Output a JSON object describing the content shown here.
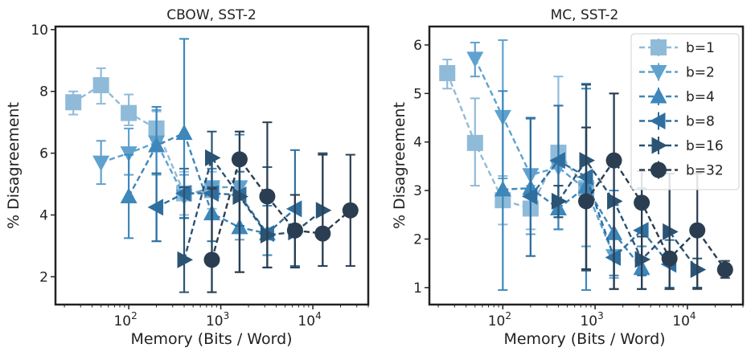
{
  "series_styles": [
    {
      "name": "b=1",
      "color": "#8fbbd9",
      "marker": "square"
    },
    {
      "name": "b=2",
      "color": "#5fa2cf",
      "marker": "triangle-down"
    },
    {
      "name": "b=4",
      "color": "#3d87bb",
      "marker": "triangle-up"
    },
    {
      "name": "b=8",
      "color": "#2f6fa0",
      "marker": "triangle-left"
    },
    {
      "name": "b=16",
      "color": "#2b5373",
      "marker": "triangle-right"
    },
    {
      "name": "b=32",
      "color": "#2b3e51",
      "marker": "circle"
    }
  ],
  "chart_data": [
    {
      "type": "line",
      "title": "CBOW, SST-2",
      "xlabel": "Memory (Bits / Word)",
      "ylabel": "% Disagreement",
      "xscale": "log",
      "xlim": [
        16,
        40000
      ],
      "ylim": [
        1.1,
        10.1
      ],
      "xticks": [
        {
          "value": 100,
          "base": "10",
          "exp": "2"
        },
        {
          "value": 1000,
          "base": "10",
          "exp": "3"
        },
        {
          "value": 10000,
          "base": "10",
          "exp": "4"
        }
      ],
      "yticks": [
        2,
        4,
        6,
        8,
        10
      ],
      "series": [
        {
          "name": "b=1",
          "x": [
            25,
            50,
            100,
            200,
            400,
            800
          ],
          "y": [
            7.65,
            8.2,
            7.3,
            6.8,
            4.7,
            4.8
          ],
          "err_lo": [
            7.25,
            7.6,
            6.9,
            6.3,
            4.0,
            4.2
          ],
          "err_hi": [
            8.0,
            8.75,
            7.9,
            7.35,
            5.4,
            5.4
          ]
        },
        {
          "name": "b=2",
          "x": [
            50,
            100,
            200,
            400,
            800,
            1600
          ],
          "y": [
            5.7,
            6.0,
            6.35,
            4.6,
            4.9,
            4.9
          ],
          "err_lo": [
            5.0,
            5.3,
            5.3,
            3.9,
            4.0,
            3.2
          ],
          "err_hi": [
            6.4,
            6.8,
            7.4,
            5.3,
            5.8,
            6.7
          ]
        },
        {
          "name": "b=4",
          "x": [
            100,
            200,
            400,
            800,
            1600,
            3200
          ],
          "y": [
            4.6,
            6.25,
            6.65,
            4.05,
            3.6,
            3.4
          ],
          "err_lo": [
            3.25,
            3.15,
            3.9,
            1.5,
            2.15,
            2.7
          ],
          "err_hi": [
            5.95,
            7.5,
            9.7,
            5.5,
            6.6,
            4.3
          ]
        },
        {
          "name": "b=8",
          "x": [
            200,
            400,
            800,
            1600,
            3200,
            6400
          ],
          "y": [
            4.25,
            4.7,
            4.7,
            4.65,
            3.4,
            4.2
          ],
          "err_lo": [
            3.15,
            3.9,
            3.15,
            3.65,
            2.3,
            2.35
          ],
          "err_hi": [
            5.35,
            5.5,
            5.9,
            5.4,
            4.5,
            6.1
          ]
        },
        {
          "name": "b=16",
          "x": [
            400,
            800,
            1600,
            3200,
            6400,
            12800
          ],
          "y": [
            2.55,
            5.85,
            4.6,
            3.35,
            3.45,
            4.15
          ],
          "err_lo": [
            1.5,
            4.9,
            2.15,
            2.3,
            2.3,
            2.35
          ],
          "err_hi": [
            4.9,
            6.7,
            5.8,
            5.55,
            4.65,
            6.0
          ]
        },
        {
          "name": "b=32",
          "x": [
            800,
            1600,
            3200,
            6400,
            12800,
            25600
          ],
          "y": [
            2.55,
            5.8,
            4.6,
            3.5,
            3.4,
            4.15
          ],
          "err_lo": [
            1.5,
            2.15,
            2.3,
            2.3,
            2.35,
            2.35
          ],
          "err_hi": [
            4.85,
            6.7,
            7.0,
            4.65,
            5.95,
            5.95
          ]
        }
      ]
    },
    {
      "type": "line",
      "title": "MC, SST-2",
      "xlabel": "Memory (Bits / Word)",
      "ylabel": "% Disagreement",
      "xscale": "log",
      "xlim": [
        16,
        40000
      ],
      "ylim": [
        0.65,
        6.38
      ],
      "xticks": [
        {
          "value": 100,
          "base": "10",
          "exp": "2"
        },
        {
          "value": 1000,
          "base": "10",
          "exp": "3"
        },
        {
          "value": 10000,
          "base": "10",
          "exp": "4"
        }
      ],
      "yticks": [
        1,
        2,
        3,
        4,
        5,
        6
      ],
      "legend": "top-right",
      "series": [
        {
          "name": "b=1",
          "x": [
            25,
            50,
            100,
            200,
            400,
            800
          ],
          "y": [
            5.42,
            3.98,
            2.8,
            2.63,
            3.78,
            3.05
          ],
          "err_lo": [
            5.1,
            3.1,
            2.3,
            2.2,
            2.2,
            1.85
          ],
          "err_hi": [
            5.7,
            4.9,
            3.3,
            3.1,
            5.35,
            4.3
          ]
        },
        {
          "name": "b=2",
          "x": [
            50,
            100,
            200,
            400,
            800,
            1600
          ],
          "y": [
            5.72,
            4.52,
            3.32,
            3.48,
            3.02,
            1.65
          ],
          "err_lo": [
            5.35,
            3.25,
            2.1,
            2.2,
            1.85,
            1.2
          ],
          "err_hi": [
            6.05,
            6.1,
            4.5,
            4.75,
            4.3,
            2.1
          ]
        },
        {
          "name": "b=4",
          "x": [
            100,
            200,
            400,
            800,
            1600,
            3200
          ],
          "y": [
            3.02,
            3.05,
            2.63,
            3.08,
            2.12,
            1.4
          ],
          "err_lo": [
            0.95,
            1.65,
            2.2,
            0.95,
            1.25,
            0.97
          ],
          "err_hi": [
            5.05,
            4.48,
            3.1,
            5.1,
            3.0,
            1.85
          ]
        },
        {
          "name": "b=8",
          "x": [
            200,
            400,
            800,
            1600,
            3200,
            6400
          ],
          "y": [
            2.88,
            3.62,
            3.28,
            1.62,
            2.18,
            1.48
          ],
          "err_lo": [
            1.65,
            2.45,
            1.38,
            0.97,
            1.25,
            1.0
          ],
          "err_hi": [
            4.5,
            4.75,
            5.2,
            2.7,
            3.05,
            1.98
          ]
        },
        {
          "name": "b=16",
          "x": [
            400,
            800,
            1600,
            3200,
            6400,
            12800
          ],
          "y": [
            2.78,
            3.62,
            2.78,
            1.58,
            2.15,
            1.37
          ],
          "err_lo": [
            2.45,
            1.35,
            0.97,
            0.97,
            0.97,
            1.0
          ],
          "err_hi": [
            3.1,
            5.18,
            5.0,
            2.05,
            3.35,
            1.6
          ]
        },
        {
          "name": "b=32",
          "x": [
            800,
            1600,
            3200,
            6400,
            12800,
            25600
          ],
          "y": [
            2.78,
            3.62,
            2.75,
            1.6,
            2.18,
            1.37
          ],
          "err_lo": [
            1.38,
            0.97,
            0.97,
            0.97,
            0.97,
            1.2
          ],
          "err_hi": [
            4.3,
            5.0,
            3.4,
            3.35,
            3.35,
            1.55
          ]
        }
      ]
    }
  ]
}
